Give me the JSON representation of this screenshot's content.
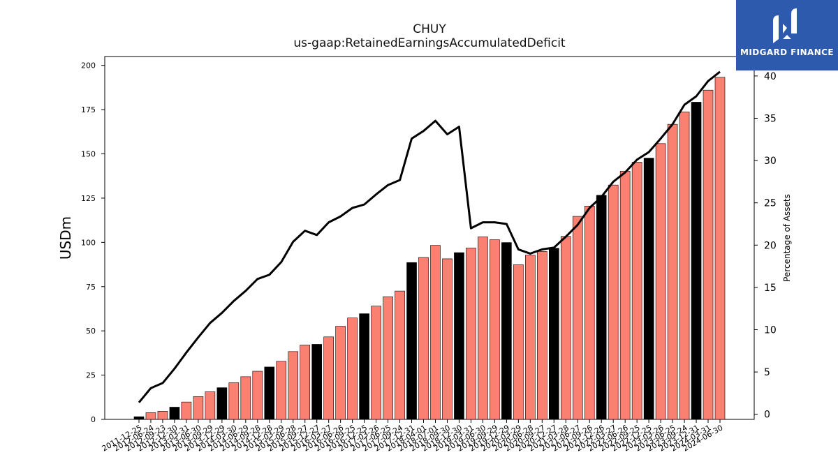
{
  "title": "CHUY",
  "subtitle": "us-gaap:RetainedEarningsAccumulatedDeficit",
  "logo": {
    "text": "MIDGARD FINANCE",
    "bg": "#2d5aad"
  },
  "colors": {
    "bar_normal": "#fa8072",
    "bar_highlight": "#000000",
    "line": "#000000"
  },
  "chart_data": {
    "type": "bar",
    "ylabel": "USDm",
    "y2label": "Percentage of Assets",
    "ylim": [
      0,
      205
    ],
    "y2lim": [
      -0.6,
      42.3
    ],
    "yticks": [
      0,
      25,
      50,
      75,
      100,
      125,
      150,
      175,
      200
    ],
    "y2ticks": [
      0,
      5,
      10,
      15,
      20,
      25,
      30,
      35,
      40
    ],
    "categories": [
      "2011-12-25",
      "2012-06-24",
      "2012-09-23",
      "2012-12-30",
      "2013-03-31",
      "2013-06-30",
      "2013-09-29",
      "2013-12-29",
      "2014-03-30",
      "2014-06-29",
      "2014-09-28",
      "2014-12-28",
      "2015-03-29",
      "2015-06-28",
      "2015-09-27",
      "2015-12-27",
      "2016-03-27",
      "2016-06-26",
      "2016-09-25",
      "2016-12-25",
      "2017-03-26",
      "2017-06-25",
      "2017-09-24",
      "2017-12-31",
      "2018-04-01",
      "2018-07-01",
      "2018-09-30",
      "2018-12-30",
      "2019-03-31",
      "2019-06-30",
      "2019-09-29",
      "2019-12-29",
      "2020-03-29",
      "2020-06-28",
      "2020-09-27",
      "2020-12-27",
      "2021-03-28",
      "2021-06-27",
      "2021-09-26",
      "2021-12-26",
      "2022-03-27",
      "2022-06-26",
      "2022-09-25",
      "2022-12-25",
      "2023-03-26",
      "2023-06-25",
      "2023-09-24",
      "2023-12-31",
      "2024-03-31",
      "2024-06-30"
    ],
    "series": [
      {
        "type": "bar",
        "values": [
          1.5,
          3.8,
          4.6,
          6.9,
          9.8,
          12.9,
          15.6,
          17.9,
          20.7,
          24.1,
          27.2,
          29.6,
          32.8,
          38.3,
          42.0,
          42.4,
          46.6,
          52.6,
          57.3,
          59.7,
          64.0,
          69.3,
          72.5,
          88.6,
          91.5,
          98.3,
          90.7,
          94.2,
          96.8,
          103.1,
          101.5,
          99.9,
          87.4,
          92.8,
          94.9,
          96.7,
          103.4,
          114.7,
          120.5,
          126.6,
          132.4,
          140.2,
          145.3,
          147.6,
          155.8,
          166.7,
          173.7,
          179.2,
          186.0,
          193.3
        ],
        "highlight": [
          true,
          false,
          false,
          true,
          false,
          false,
          false,
          true,
          false,
          false,
          false,
          true,
          false,
          false,
          false,
          true,
          false,
          false,
          false,
          true,
          false,
          false,
          false,
          true,
          false,
          false,
          false,
          true,
          false,
          false,
          false,
          true,
          false,
          false,
          false,
          true,
          false,
          false,
          false,
          true,
          false,
          false,
          false,
          true,
          false,
          false,
          false,
          true,
          false,
          false
        ]
      },
      {
        "type": "line",
        "axis": "right",
        "values": [
          1.4,
          3.1,
          3.7,
          5.4,
          7.3,
          9.1,
          10.8,
          12.0,
          13.4,
          14.6,
          16.0,
          16.5,
          18.0,
          20.4,
          21.7,
          21.2,
          22.7,
          23.4,
          24.4,
          24.8,
          26.0,
          27.1,
          27.7,
          32.6,
          33.5,
          34.7,
          33.1,
          34.0,
          22.0,
          22.7,
          22.7,
          22.5,
          19.5,
          19.0,
          19.5,
          19.7,
          21.0,
          22.4,
          24.4,
          25.7,
          27.5,
          28.6,
          30.1,
          31.0,
          32.6,
          34.3,
          36.6,
          37.6,
          39.4,
          40.5
        ]
      }
    ]
  }
}
